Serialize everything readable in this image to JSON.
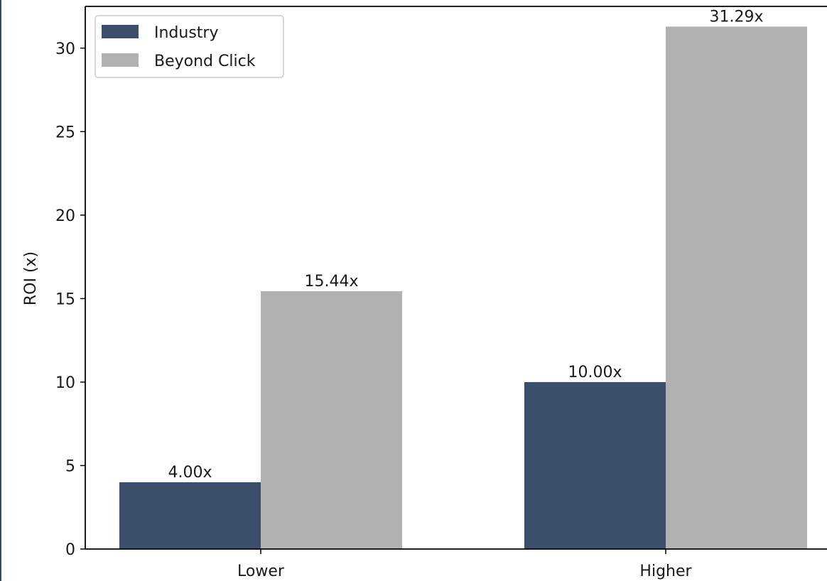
{
  "colors": {
    "series_0": "#3b4f6c",
    "series_1": "#b1b1b1",
    "axis": "#000000",
    "text": "#1a1a1a"
  },
  "chart_data": {
    "type": "bar",
    "title": "",
    "xlabel": "",
    "ylabel": "ROI (x)",
    "ylim": [
      0,
      32.5
    ],
    "yticks": [
      "0",
      "5",
      "10",
      "15",
      "20",
      "25",
      "30"
    ],
    "categories": [
      "Lower",
      "Higher"
    ],
    "series": [
      {
        "name": "Industry",
        "values": [
          4.0,
          10.0
        ],
        "labels": [
          "4.00x",
          "10.00x"
        ]
      },
      {
        "name": "Beyond Click",
        "values": [
          15.44,
          31.29
        ],
        "labels": [
          "15.44x",
          "31.29x"
        ]
      }
    ],
    "grid": false,
    "legend_position": "top-left"
  }
}
